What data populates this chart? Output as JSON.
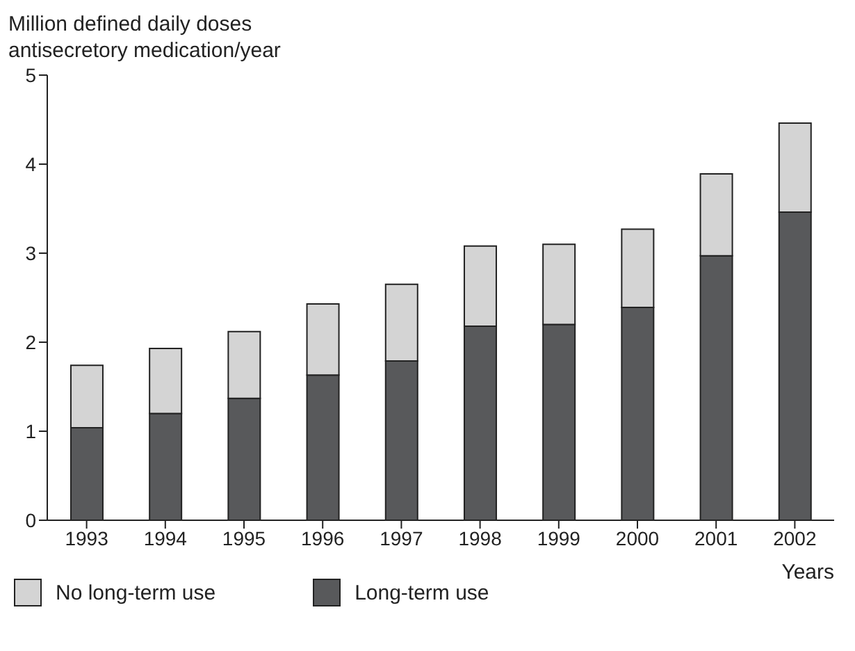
{
  "chart_data": {
    "type": "bar",
    "title": "Million defined daily doses\nantisecretory medication/year",
    "xlabel": "Years",
    "categories": [
      "1993",
      "1994",
      "1995",
      "1996",
      "1997",
      "1998",
      "1999",
      "2000",
      "2001",
      "2002"
    ],
    "stacked": true,
    "series": [
      {
        "name": "Long-term use",
        "color": "#58595b",
        "values": [
          1.04,
          1.2,
          1.37,
          1.63,
          1.79,
          2.18,
          2.2,
          2.39,
          2.97,
          3.46
        ]
      },
      {
        "name": "No long-term use",
        "color": "#d4d4d4",
        "values": [
          0.7,
          0.73,
          0.75,
          0.8,
          0.86,
          0.9,
          0.9,
          0.88,
          0.92,
          1.0
        ]
      }
    ],
    "ylim": [
      0,
      5
    ],
    "yticks": [
      0,
      1,
      2,
      3,
      4,
      5
    ],
    "grid": false,
    "legend": "bottom left"
  }
}
